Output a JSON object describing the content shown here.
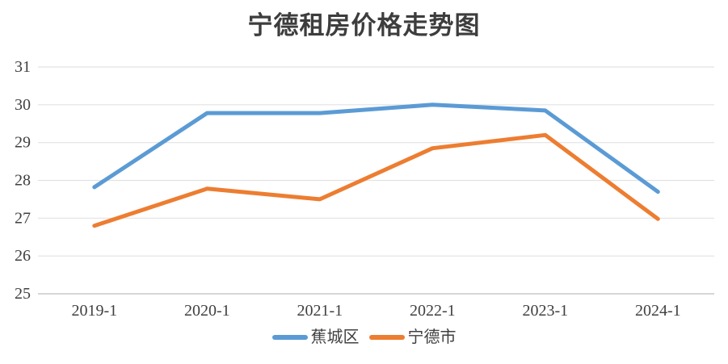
{
  "chart_data": {
    "type": "line",
    "title": "宁德租房价格走势图",
    "categories": [
      "2019-1",
      "2020-1",
      "2021-1",
      "2022-1",
      "2023-1",
      "2024-1"
    ],
    "series": [
      {
        "name": "蕉城区",
        "color": "#5B9BD5",
        "values": [
          27.82,
          29.78,
          29.78,
          30.0,
          29.85,
          27.7
        ]
      },
      {
        "name": "宁德市",
        "color": "#ED7D31",
        "values": [
          26.8,
          27.78,
          27.5,
          28.85,
          29.2,
          26.98
        ]
      }
    ],
    "xlabel": "",
    "ylabel": "",
    "ylim": [
      25,
      31
    ],
    "ytick_step": 1,
    "grid": "horizontal",
    "legend_position": "bottom"
  },
  "colors": {
    "grid": "#e2e2e2",
    "axis": "#c9c9c9",
    "text": "#404040",
    "background": "#ffffff",
    "series_blue": "#5B9BD5",
    "series_orange": "#ED7D31"
  }
}
